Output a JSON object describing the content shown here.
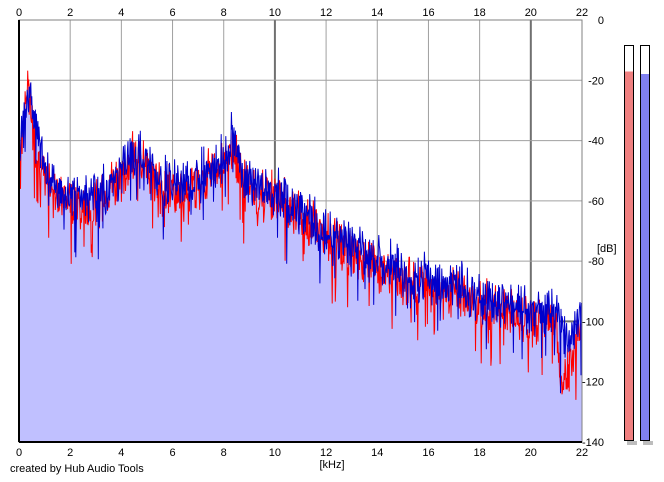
{
  "footer": {
    "credit": "created by Hub Audio Tools"
  },
  "colors": {
    "left_channel": "#ff0000",
    "right_channel": "#0000cc",
    "fill": "#c0c0ff",
    "grid": "#a0a0a0",
    "meter_left": "#f08080",
    "meter_right": "#8080f0"
  },
  "meters": {
    "left_level_db": -9,
    "right_level_db": -10
  },
  "chart_data": {
    "type": "line",
    "xlabel": "[kHz]",
    "ylabel": "[dB]",
    "xlim": [
      0,
      22
    ],
    "ylim": [
      -140,
      0
    ],
    "x_ticks": [
      0,
      2,
      4,
      6,
      8,
      10,
      12,
      14,
      16,
      18,
      20,
      22
    ],
    "y_ticks": [
      0,
      -20,
      -40,
      -60,
      -80,
      -100,
      -120,
      -140
    ],
    "grid": true,
    "series": [
      {
        "color": "#ff0000",
        "x": [
          0,
          0.2,
          0.3,
          0.5,
          0.7,
          1,
          1.5,
          2,
          2.5,
          3,
          3.5,
          4,
          4.5,
          5,
          5.5,
          6,
          6.5,
          7,
          7.5,
          8,
          8.3,
          9,
          10,
          11,
          12,
          13,
          14,
          15,
          16,
          17,
          18,
          19,
          20,
          21,
          21.2,
          22
        ],
        "values": [
          -45,
          -35,
          -22,
          -33,
          -45,
          -52,
          -58,
          -60,
          -62,
          -60,
          -57,
          -52,
          -45,
          -50,
          -57,
          -55,
          -60,
          -54,
          -50,
          -48,
          -40,
          -58,
          -58,
          -65,
          -72,
          -76,
          -82,
          -86,
          -88,
          -90,
          -94,
          -96,
          -98,
          -100,
          -122,
          -100
        ]
      },
      {
        "color": "#0000cc",
        "x": [
          0,
          0.2,
          0.4,
          0.6,
          0.8,
          1,
          1.5,
          2,
          2.5,
          3,
          3.5,
          4,
          4.5,
          5,
          5.5,
          6,
          6.5,
          7,
          7.5,
          8,
          8.3,
          9,
          10,
          11,
          12,
          13,
          14,
          15,
          16,
          17,
          18,
          19,
          20,
          21,
          21.5,
          22
        ],
        "values": [
          -45,
          -30,
          -25,
          -32,
          -40,
          -50,
          -57,
          -58,
          -60,
          -58,
          -56,
          -50,
          -43,
          -48,
          -55,
          -53,
          -57,
          -52,
          -48,
          -47,
          -38,
          -55,
          -57,
          -63,
          -70,
          -74,
          -80,
          -84,
          -86,
          -88,
          -92,
          -95,
          -96,
          -98,
          -105,
          -98
        ]
      }
    ]
  }
}
